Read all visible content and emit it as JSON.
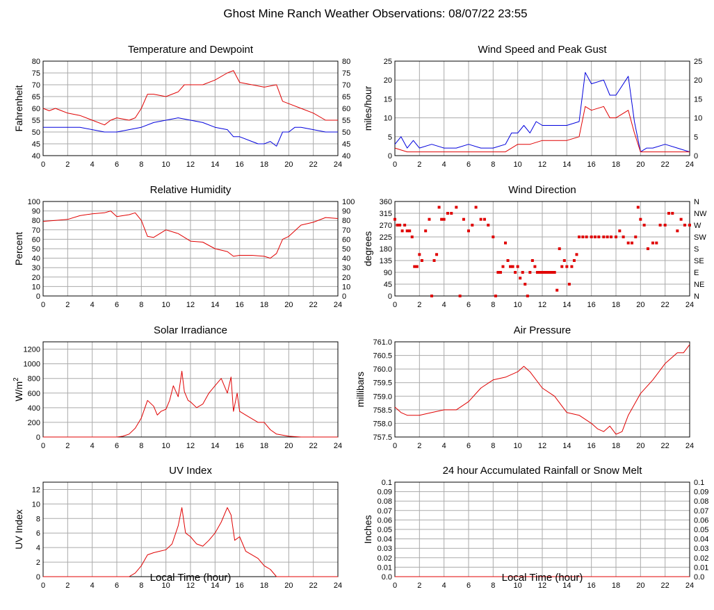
{
  "page_title": "Ghost Mine Ranch Weather Observations: 08/07/22 23:55",
  "x_axis_label": "Local Time (hour)",
  "colors": {
    "red": "#e00000",
    "blue": "#0000dd",
    "grid": "#aaaaaa"
  },
  "chart_data": [
    {
      "id": "temperature",
      "type": "line",
      "title": "Temperature and Dewpoint",
      "ylabel": "Fahrenheit",
      "xlim": [
        0,
        24
      ],
      "xticks": [
        0,
        2,
        4,
        6,
        8,
        10,
        12,
        14,
        16,
        18,
        20,
        22,
        24
      ],
      "ylim": [
        40,
        80
      ],
      "yticks": [
        40,
        45,
        50,
        55,
        60,
        65,
        70,
        75,
        80
      ],
      "right_ticks": [
        "40",
        "45",
        "50",
        "55",
        "60",
        "65",
        "70",
        "75",
        "80"
      ],
      "grid": true,
      "series": [
        {
          "color": "red",
          "x": [
            0,
            0.5,
            1,
            1.5,
            2,
            3,
            4,
            5,
            5.5,
            6,
            7,
            7.5,
            8,
            8.5,
            9,
            10,
            11,
            11.5,
            12,
            13,
            14,
            15,
            15.5,
            16,
            17,
            18,
            19,
            19.5,
            20,
            21,
            22,
            23,
            24
          ],
          "y": [
            60,
            59,
            60,
            59,
            58,
            57,
            55,
            53,
            55,
            56,
            55,
            56,
            60,
            66,
            66,
            65,
            67,
            70,
            70,
            70,
            72,
            75,
            76,
            71,
            70,
            69,
            70,
            63,
            62,
            60,
            58,
            55,
            55
          ]
        },
        {
          "color": "blue",
          "x": [
            0,
            1,
            2,
            3,
            4,
            5,
            6,
            7,
            8,
            9,
            10,
            11,
            12,
            13,
            14,
            15,
            15.5,
            16,
            17,
            17.5,
            18,
            18.5,
            19,
            19.5,
            20,
            20.5,
            21,
            22,
            23,
            24
          ],
          "y": [
            52,
            52,
            52,
            52,
            51,
            50,
            50,
            51,
            52,
            54,
            55,
            56,
            55,
            54,
            52,
            51,
            48,
            48,
            46,
            45,
            45,
            46,
            44,
            50,
            50,
            52,
            52,
            51,
            50,
            50
          ]
        }
      ]
    },
    {
      "id": "wind-speed",
      "type": "line",
      "title": "Wind Speed and Peak Gust",
      "ylabel": "miles/hour",
      "xlim": [
        0,
        24
      ],
      "xticks": [
        0,
        2,
        4,
        6,
        8,
        10,
        12,
        14,
        16,
        18,
        20,
        22,
        24
      ],
      "ylim": [
        0,
        25
      ],
      "yticks": [
        0,
        5,
        10,
        15,
        20,
        25
      ],
      "right_ticks": [
        "0",
        "5",
        "10",
        "15",
        "20",
        "25"
      ],
      "grid": true,
      "series": [
        {
          "color": "blue",
          "x": [
            0,
            0.5,
            1,
            1.5,
            2,
            3,
            4,
            5,
            6,
            7,
            8,
            9,
            9.5,
            10,
            10.5,
            11,
            11.5,
            12,
            13,
            14,
            15,
            15.5,
            16,
            17,
            17.5,
            18,
            19,
            19.5,
            20,
            20.5,
            21,
            22,
            23,
            24
          ],
          "y": [
            3,
            5,
            2,
            4,
            2,
            3,
            2,
            2,
            3,
            2,
            2,
            3,
            6,
            6,
            8,
            6,
            9,
            8,
            8,
            8,
            9,
            22,
            19,
            20,
            16,
            16,
            21,
            9,
            1,
            2,
            2,
            3,
            2,
            1
          ]
        },
        {
          "color": "red",
          "x": [
            0,
            1,
            2,
            3,
            4,
            5,
            6,
            7,
            8,
            9,
            10,
            11,
            12,
            13,
            14,
            15,
            15.5,
            16,
            17,
            17.5,
            18,
            19,
            19.5,
            20,
            21,
            22,
            23,
            24
          ],
          "y": [
            2,
            1,
            1,
            1,
            1,
            1,
            1,
            1,
            1,
            1,
            3,
            3,
            4,
            4,
            4,
            5,
            13,
            12,
            13,
            10,
            10,
            12,
            6,
            1,
            1,
            1,
            1,
            1
          ]
        }
      ]
    },
    {
      "id": "humidity",
      "type": "line",
      "title": "Relative Humidity",
      "ylabel": "Percent",
      "xlim": [
        0,
        24
      ],
      "xticks": [
        0,
        2,
        4,
        6,
        8,
        10,
        12,
        14,
        16,
        18,
        20,
        22,
        24
      ],
      "ylim": [
        0,
        100
      ],
      "yticks": [
        0,
        10,
        20,
        30,
        40,
        50,
        60,
        70,
        80,
        90,
        100
      ],
      "right_ticks": [
        "0",
        "10",
        "20",
        "30",
        "40",
        "50",
        "60",
        "70",
        "80",
        "90",
        "100"
      ],
      "grid": true,
      "series": [
        {
          "color": "red",
          "x": [
            0,
            1,
            2,
            3,
            4,
            5,
            5.5,
            6,
            7,
            7.5,
            8,
            8.5,
            9,
            10,
            11,
            12,
            13,
            14,
            15,
            15.5,
            16,
            17,
            18,
            18.5,
            19,
            19.5,
            20,
            21,
            22,
            23,
            24
          ],
          "y": [
            79,
            80,
            81,
            85,
            87,
            88,
            90,
            84,
            86,
            88,
            80,
            63,
            62,
            70,
            66,
            58,
            57,
            50,
            47,
            42,
            43,
            43,
            42,
            40,
            45,
            60,
            63,
            75,
            78,
            83,
            82
          ]
        }
      ]
    },
    {
      "id": "wind-direction",
      "type": "scatter",
      "title": "Wind Direction",
      "ylabel": "degrees",
      "xlim": [
        0,
        24
      ],
      "xticks": [
        0,
        2,
        4,
        6,
        8,
        10,
        12,
        14,
        16,
        18,
        20,
        22,
        24
      ],
      "ylim": [
        0,
        360
      ],
      "yticks": [
        0,
        45,
        90,
        135,
        180,
        225,
        270,
        315,
        360
      ],
      "right_ticks": [
        "N",
        "NE",
        "E",
        "SE",
        "S",
        "SW",
        "W",
        "NW",
        "N"
      ],
      "grid": true,
      "series": [
        {
          "color": "red",
          "x": [
            0,
            0.2,
            0.4,
            0.6,
            0.8,
            1.0,
            1.2,
            1.4,
            1.6,
            1.8,
            2.0,
            2.2,
            2.5,
            2.8,
            3.0,
            3.2,
            3.4,
            3.6,
            3.8,
            4.0,
            4.3,
            4.6,
            5.0,
            5.3,
            5.6,
            6.0,
            6.3,
            6.6,
            7.0,
            7.3,
            7.6,
            8.0,
            8.2,
            8.4,
            8.6,
            8.8,
            9.0,
            9.2,
            9.4,
            9.6,
            9.8,
            10.0,
            10.2,
            10.4,
            10.6,
            10.8,
            11.0,
            11.2,
            11.4,
            11.6,
            11.8,
            12.0,
            12.2,
            12.4,
            12.6,
            12.8,
            13.0,
            13.2,
            13.4,
            13.6,
            13.8,
            14.0,
            14.2,
            14.4,
            14.6,
            14.8,
            15.0,
            15.3,
            15.6,
            16.0,
            16.3,
            16.6,
            17.0,
            17.3,
            17.6,
            18.0,
            18.3,
            18.6,
            19.0,
            19.3,
            19.6,
            19.8,
            20.0,
            20.3,
            20.6,
            21.0,
            21.3,
            21.6,
            22.0,
            22.3,
            22.6,
            23.0,
            23.3,
            23.6,
            24.0
          ],
          "y": [
            292,
            270,
            270,
            248,
            270,
            248,
            248,
            225,
            112,
            112,
            158,
            135,
            248,
            292,
            0,
            135,
            158,
            338,
            292,
            292,
            315,
            315,
            338,
            0,
            292,
            248,
            270,
            338,
            292,
            292,
            270,
            225,
            0,
            90,
            90,
            112,
            202,
            135,
            112,
            112,
            90,
            112,
            68,
            90,
            45,
            0,
            90,
            135,
            112,
            90,
            90,
            90,
            90,
            90,
            90,
            90,
            90,
            22,
            180,
            112,
            135,
            112,
            45,
            112,
            135,
            158,
            225,
            225,
            225,
            225,
            225,
            225,
            225,
            225,
            225,
            225,
            248,
            225,
            202,
            202,
            225,
            338,
            292,
            270,
            180,
            202,
            202,
            270,
            270,
            315,
            315,
            248,
            292,
            270,
            270
          ]
        }
      ]
    },
    {
      "id": "solar",
      "type": "line",
      "title": "Solar Irradiance",
      "ylabel": "W/m",
      "ylabel_sup": "2",
      "xlim": [
        0,
        24
      ],
      "xticks": [
        0,
        2,
        4,
        6,
        8,
        10,
        12,
        14,
        16,
        18,
        20,
        22,
        24
      ],
      "ylim": [
        0,
        1300
      ],
      "yticks": [
        0,
        200,
        400,
        600,
        800,
        1000,
        1200
      ],
      "right_ticks": [],
      "grid": true,
      "series": [
        {
          "color": "red",
          "x": [
            0,
            6,
            6.5,
            7,
            7.5,
            8,
            8.5,
            9,
            9.3,
            9.6,
            10,
            10.3,
            10.6,
            11,
            11.3,
            11.5,
            11.8,
            12,
            12.5,
            13,
            13.5,
            14,
            14.5,
            15,
            15.3,
            15.5,
            15.8,
            16,
            16.5,
            17,
            17.5,
            18,
            18.5,
            19,
            20,
            21,
            24
          ],
          "y": [
            0,
            0,
            10,
            40,
            120,
            260,
            500,
            420,
            300,
            350,
            380,
            500,
            700,
            550,
            900,
            620,
            500,
            480,
            400,
            450,
            600,
            700,
            800,
            600,
            820,
            350,
            600,
            350,
            300,
            250,
            200,
            200,
            100,
            40,
            10,
            0,
            0
          ]
        }
      ]
    },
    {
      "id": "pressure",
      "type": "line",
      "title": "Air Pressure",
      "ylabel": "millibars",
      "xlim": [
        0,
        24
      ],
      "xticks": [
        0,
        2,
        4,
        6,
        8,
        10,
        12,
        14,
        16,
        18,
        20,
        22,
        24
      ],
      "ylim": [
        757.5,
        761.0
      ],
      "yticks": [
        757.5,
        758.0,
        758.5,
        759.0,
        759.5,
        760.0,
        760.5,
        761.0
      ],
      "ytick_labels": [
        "757.5",
        "758.0",
        "758.5",
        "759.0",
        "759.5",
        "760.0",
        "760.5",
        "761.0"
      ],
      "right_ticks": [],
      "grid": true,
      "series": [
        {
          "color": "red",
          "x": [
            0,
            0.5,
            1,
            2,
            3,
            4,
            5,
            6,
            7,
            8,
            9,
            10,
            10.5,
            11,
            12,
            13,
            14,
            15,
            16,
            16.5,
            17,
            17.5,
            18,
            18.5,
            19,
            20,
            21,
            22,
            23,
            23.5,
            24
          ],
          "y": [
            758.6,
            758.4,
            758.3,
            758.3,
            758.4,
            758.5,
            758.5,
            758.8,
            759.3,
            759.6,
            759.7,
            759.9,
            760.1,
            759.9,
            759.3,
            759.0,
            758.4,
            758.3,
            758.0,
            757.8,
            757.7,
            757.9,
            757.6,
            757.7,
            758.3,
            759.1,
            759.6,
            760.2,
            760.6,
            760.6,
            760.9
          ]
        }
      ]
    },
    {
      "id": "uv",
      "type": "line",
      "title": "UV Index",
      "ylabel": "UV Index",
      "xlim": [
        0,
        24
      ],
      "xticks": [
        0,
        2,
        4,
        6,
        8,
        10,
        12,
        14,
        16,
        18,
        20,
        22,
        24
      ],
      "ylim": [
        0,
        13
      ],
      "yticks": [
        0,
        2,
        4,
        6,
        8,
        10,
        12
      ],
      "right_ticks": [],
      "grid": true,
      "series": [
        {
          "color": "red",
          "x": [
            0,
            6.2,
            7,
            7.5,
            8,
            8.5,
            9,
            9.5,
            10,
            10.5,
            11,
            11.3,
            11.6,
            12,
            12.5,
            13,
            13.5,
            14,
            14.5,
            15,
            15.3,
            15.6,
            16,
            16.5,
            17,
            17.5,
            18,
            18.5,
            19,
            24
          ],
          "y": [
            0,
            0,
            0,
            0.5,
            1.5,
            3,
            3.3,
            3.5,
            3.7,
            4.5,
            7,
            9.5,
            6,
            5.5,
            4.5,
            4.2,
            5,
            6,
            7.5,
            9.5,
            8.5,
            5,
            5.5,
            3.5,
            3,
            2.5,
            1.5,
            1,
            0,
            0
          ]
        }
      ]
    },
    {
      "id": "rainfall",
      "type": "line",
      "title": "24 hour Accumulated Rainfall or Snow Melt",
      "ylabel": "Inches",
      "xlim": [
        0,
        24
      ],
      "xticks": [
        0,
        2,
        4,
        6,
        8,
        10,
        12,
        14,
        16,
        18,
        20,
        22,
        24
      ],
      "ylim": [
        0,
        0.1
      ],
      "yticks": [
        0,
        0.01,
        0.02,
        0.03,
        0.04,
        0.05,
        0.06,
        0.07,
        0.08,
        0.09,
        0.1
      ],
      "ytick_labels": [
        "0.0",
        "0.01",
        "0.02",
        "0.03",
        "0.04",
        "0.05",
        "0.06",
        "0.07",
        "0.08",
        "0.09",
        "0.1"
      ],
      "right_ticks": [
        "0.0",
        "0.01",
        "0.02",
        "0.03",
        "0.04",
        "0.05",
        "0.06",
        "0.07",
        "0.08",
        "0.09",
        "0.1"
      ],
      "grid": true,
      "series": [
        {
          "color": "red",
          "x": [
            0,
            24
          ],
          "y": [
            0,
            0
          ]
        }
      ]
    }
  ]
}
